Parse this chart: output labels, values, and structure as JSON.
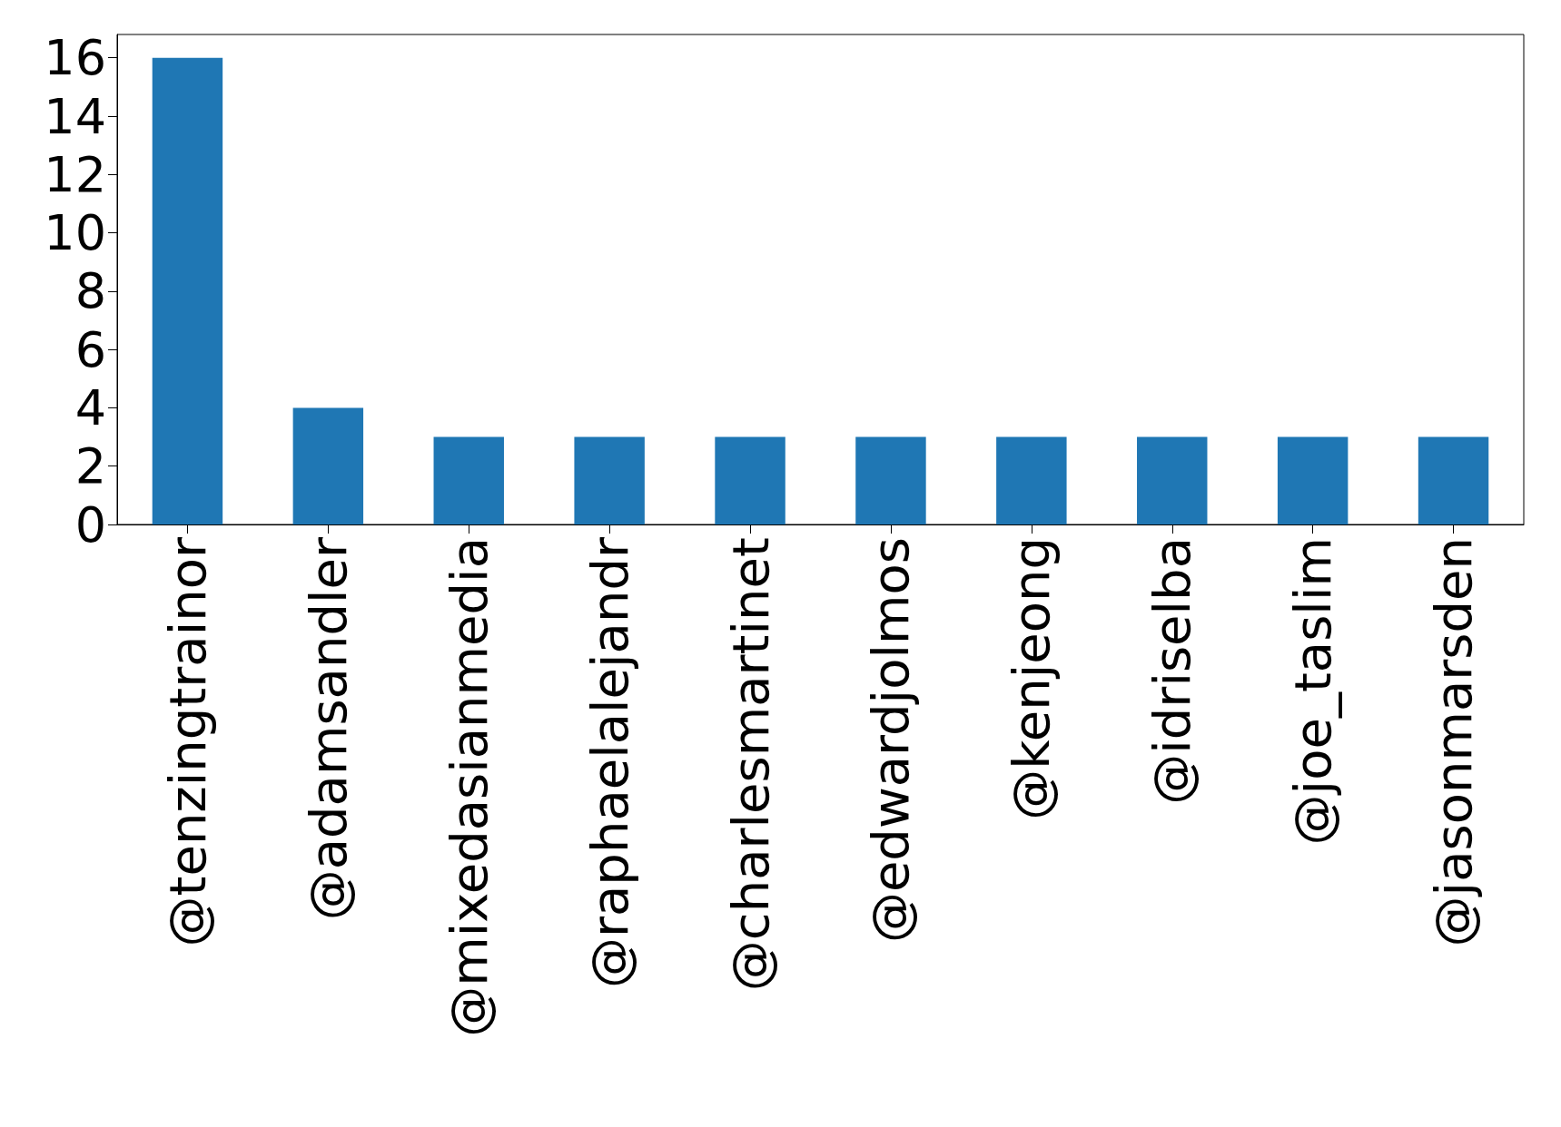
{
  "chart_data": {
    "type": "bar",
    "categories": [
      "@tenzingtrainor",
      "@adamsandler",
      "@mixedasianmedia",
      "@raphaelalejandr",
      "@charlesmartinet",
      "@edwardjolmos",
      "@kenjeong",
      "@idriselba",
      "@joe_taslim",
      "@jasonmarsden"
    ],
    "values": [
      16,
      4,
      3,
      3,
      3,
      3,
      3,
      3,
      3,
      3
    ],
    "color": "#1f77b4",
    "ylim": [
      0,
      16.8
    ],
    "yticks": [
      0,
      2,
      4,
      6,
      8,
      10,
      12,
      14,
      16
    ],
    "grid": false
  }
}
